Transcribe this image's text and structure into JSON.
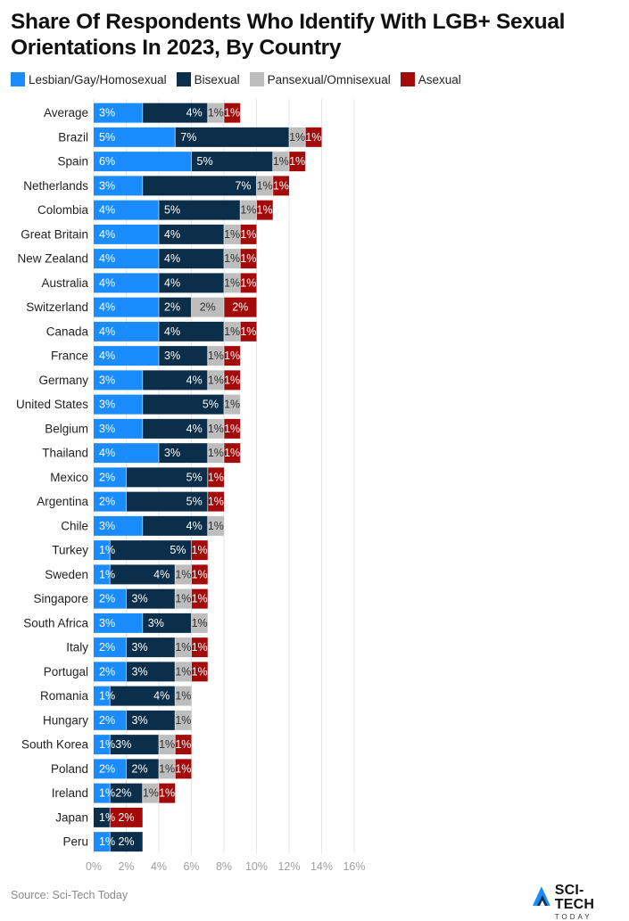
{
  "chart_data": {
    "type": "bar",
    "orientation": "horizontal",
    "stacked": true,
    "title": "Share Of Respondents Who Identify With LGB+ Sexual Orientations In 2023, By Country",
    "categories": [
      "Average",
      "Brazil",
      "Spain",
      "Netherlands",
      "Colombia",
      "Great Britain",
      "New Zealand",
      "Australia",
      "Switzerland",
      "Canada",
      "France",
      "Germany",
      "United States",
      "Belgium",
      "Thailand",
      "Mexico",
      "Argentina",
      "Chile",
      "Turkey",
      "Sweden",
      "Singapore",
      "South Africa",
      "Italy",
      "Portugal",
      "Romania",
      "Hungary",
      "South Korea",
      "Poland",
      "Ireland",
      "Japan",
      "Peru"
    ],
    "series": [
      {
        "name": "Lesbian/Gay/Homosexual",
        "color": "#1a8cff",
        "values": [
          3,
          5,
          6,
          3,
          4,
          4,
          4,
          4,
          4,
          4,
          4,
          3,
          3,
          3,
          4,
          2,
          2,
          3,
          1,
          1,
          2,
          3,
          2,
          2,
          1,
          2,
          1,
          2,
          1,
          0,
          1
        ]
      },
      {
        "name": "Bisexual",
        "color": "#0b2e4a",
        "values": [
          4,
          7,
          5,
          7,
          5,
          4,
          4,
          4,
          2,
          4,
          3,
          4,
          5,
          4,
          3,
          5,
          5,
          4,
          5,
          4,
          3,
          3,
          3,
          3,
          4,
          3,
          3,
          2,
          2,
          1,
          2
        ]
      },
      {
        "name": "Pansexual/Omnisexual",
        "color": "#bdbdbd",
        "values": [
          1,
          1,
          1,
          1,
          1,
          1,
          1,
          1,
          2,
          1,
          1,
          1,
          1,
          1,
          1,
          0,
          0,
          1,
          0,
          1,
          1,
          1,
          1,
          1,
          1,
          1,
          1,
          1,
          1,
          0,
          0
        ]
      },
      {
        "name": "Asexual",
        "color": "#a30b0b",
        "values": [
          1,
          1,
          1,
          1,
          1,
          1,
          1,
          1,
          2,
          1,
          1,
          1,
          0,
          1,
          1,
          1,
          1,
          0,
          1,
          1,
          1,
          0,
          1,
          1,
          0,
          0,
          1,
          1,
          1,
          2,
          0
        ]
      }
    ],
    "data_label_suffix": "%",
    "x_ticks": [
      "0%",
      "2%",
      "4%",
      "6%",
      "8%",
      "10%",
      "12%",
      "14%",
      "16%"
    ],
    "xlim": [
      0,
      16
    ],
    "legend_position": "top-left",
    "grid": true
  },
  "footer": {
    "source": "Source: Sci-Tech Today",
    "brand_name": "SCI-TECH",
    "brand_sub": "TODAY"
  },
  "colors": {
    "title": "#111111",
    "text": "#222222",
    "axis_ticks": "#9e9e9e",
    "grid": "#e6e6e6",
    "label_dark": "#333333",
    "label_light": "#ffffff"
  }
}
